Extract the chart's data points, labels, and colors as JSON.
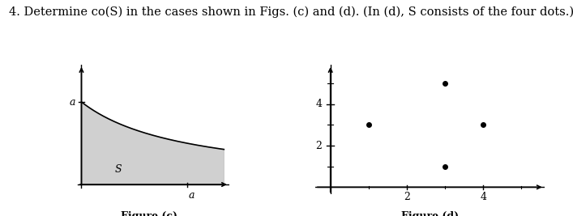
{
  "title_text": "4. Determine co(S) in the cases shown in Figs. (c) and (d). (In (d), S consists of the four dots.)",
  "title_fontsize": 10.5,
  "fig_c": {
    "label": "Figure (c)",
    "a_value": 1.0,
    "curve_label": "S",
    "shade_color": "#c8c8c8",
    "shade_alpha": 0.85,
    "axis_label": "a",
    "xlim": [
      -0.12,
      1.4
    ],
    "ylim": [
      -0.12,
      1.45
    ]
  },
  "fig_d": {
    "label": "Figure (d)",
    "dots": [
      [
        1,
        3
      ],
      [
        3,
        5
      ],
      [
        3,
        1
      ],
      [
        4,
        3
      ]
    ],
    "dot_size": 18,
    "dot_color": "#000000",
    "xticks": [
      2,
      4
    ],
    "yticks": [
      2,
      4
    ],
    "minor_xticks": [
      1,
      3,
      5
    ],
    "minor_yticks": [
      1,
      3,
      5
    ],
    "xlim": [
      -0.4,
      5.6
    ],
    "ylim": [
      -0.35,
      5.9
    ]
  },
  "background_color": "#ffffff"
}
